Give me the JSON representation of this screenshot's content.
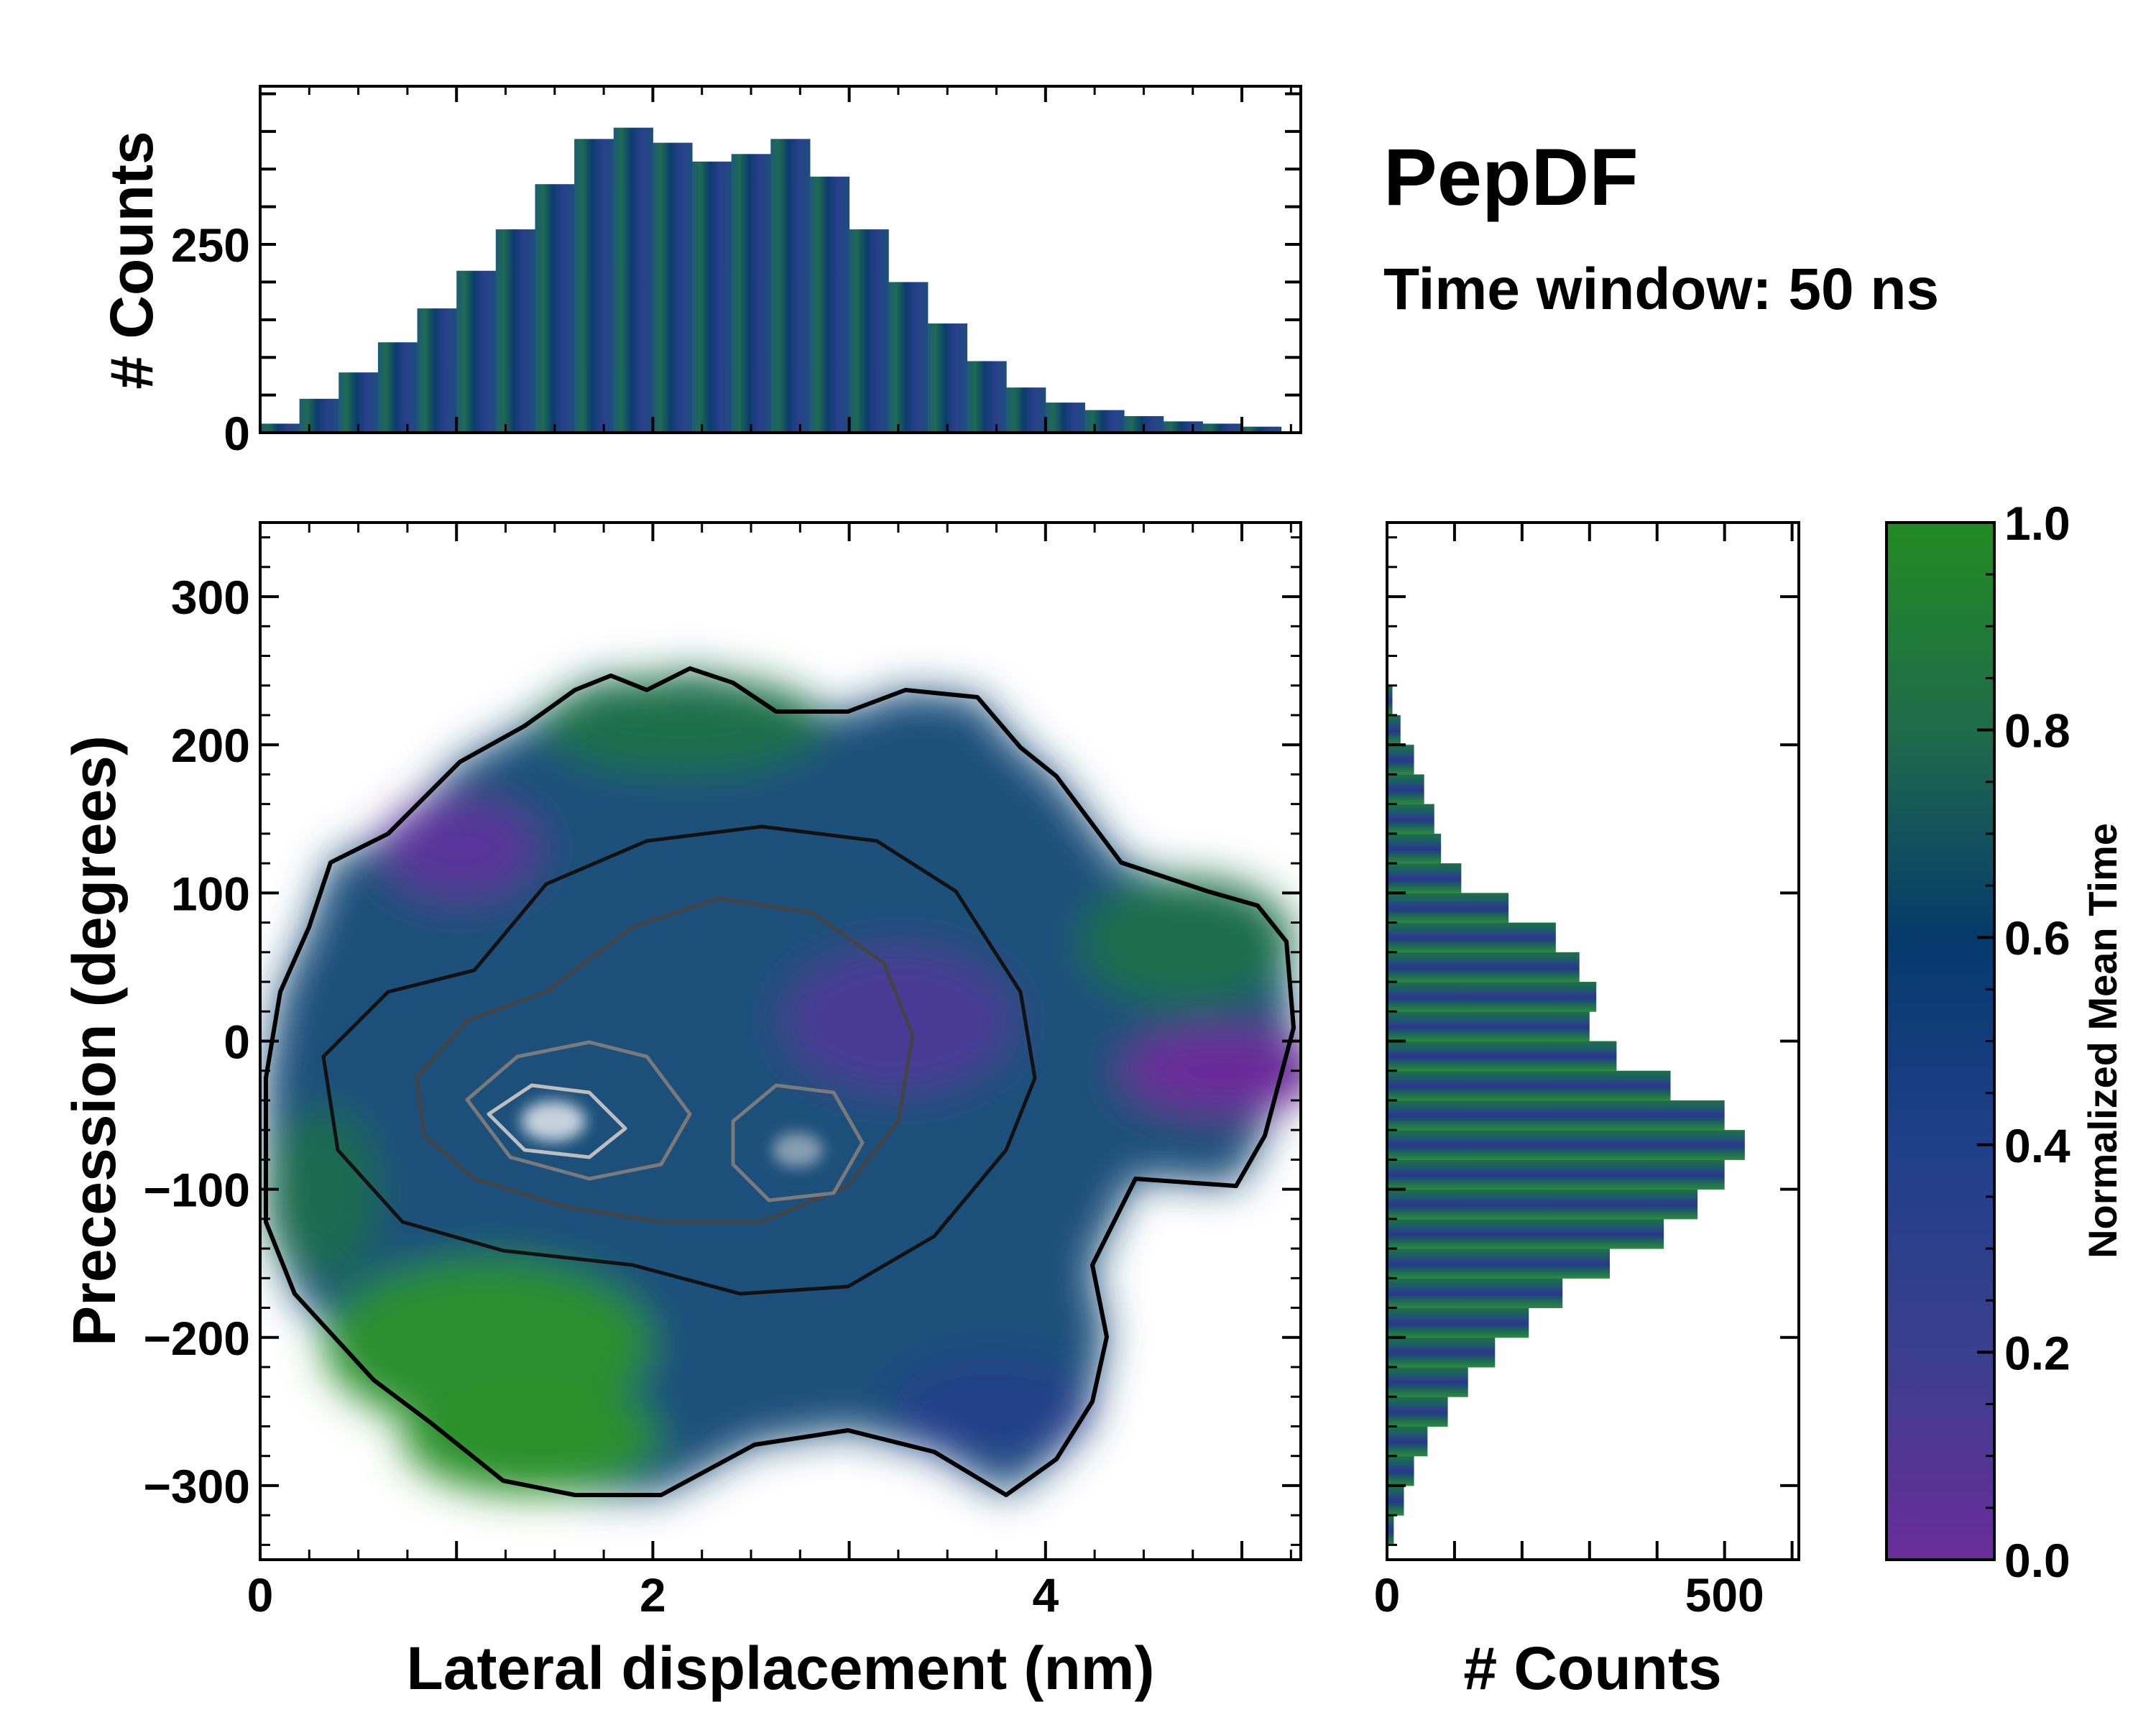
{
  "figure": {
    "title": "PepDF",
    "subtitle": "Time window: 50 ns"
  },
  "chart_data": [
    {
      "id": "joint",
      "type": "heatmap",
      "title": "",
      "xlabel": "Lateral displacement (nm)",
      "ylabel": "Precession (degrees)",
      "xlim": [
        0,
        5.3
      ],
      "ylim": [
        -350,
        350
      ],
      "xticks": [
        0,
        2,
        4
      ],
      "yticks": [
        -300,
        -200,
        -100,
        0,
        100,
        200,
        300
      ],
      "ytick_labels": [
        "−300",
        "−200",
        "−100",
        "0",
        "100",
        "200",
        "300"
      ],
      "color_meaning": "Normalized Mean Time",
      "contours": "density contours (black outer, grey inner) overlaid",
      "density_modes": [
        {
          "x": 1.5,
          "y": -60,
          "level": "high"
        },
        {
          "x": 2.7,
          "y": -80,
          "level": "high"
        }
      ],
      "regions": [
        {
          "x": 1.2,
          "y": -280,
          "mean_time": 0.95
        },
        {
          "x": 1.5,
          "y": -200,
          "mean_time": 0.95
        },
        {
          "x": 0.9,
          "y": 130,
          "mean_time": 0.15
        },
        {
          "x": 4.7,
          "y": -20,
          "mean_time": 0.15
        },
        {
          "x": 2.5,
          "y": 200,
          "mean_time": 0.7
        },
        {
          "x": 4.6,
          "y": 70,
          "mean_time": 0.7
        },
        {
          "x": 4.0,
          "y": -280,
          "mean_time": 0.35
        },
        {
          "x": 2.2,
          "y": -30,
          "mean_time": 0.4
        }
      ]
    },
    {
      "id": "top-marginal",
      "type": "bar",
      "xlabel": "",
      "ylabel": "# Counts",
      "xlim": [
        0,
        5.3
      ],
      "ylim": [
        0,
        460
      ],
      "yticks": [
        0,
        250
      ],
      "x": [
        0.1,
        0.3,
        0.5,
        0.7,
        0.9,
        1.1,
        1.3,
        1.5,
        1.7,
        1.9,
        2.1,
        2.3,
        2.5,
        2.7,
        2.9,
        3.1,
        3.3,
        3.5,
        3.7,
        3.9,
        4.1,
        4.3,
        4.5,
        4.7,
        4.9,
        5.1
      ],
      "values": [
        12,
        45,
        80,
        120,
        165,
        215,
        270,
        330,
        390,
        405,
        385,
        360,
        370,
        390,
        340,
        270,
        200,
        145,
        95,
        60,
        40,
        30,
        22,
        15,
        12,
        8
      ]
    },
    {
      "id": "right-marginal",
      "type": "bar",
      "orientation": "horizontal",
      "xlabel": "# Counts",
      "ylabel": "",
      "xlim": [
        0,
        610
      ],
      "ylim": [
        -350,
        350
      ],
      "xticks": [
        0,
        500
      ],
      "y": [
        -330,
        -310,
        -290,
        -270,
        -250,
        -230,
        -210,
        -190,
        -170,
        -150,
        -130,
        -110,
        -90,
        -70,
        -50,
        -30,
        -10,
        10,
        30,
        50,
        70,
        90,
        110,
        130,
        150,
        170,
        190,
        210,
        230
      ],
      "values": [
        10,
        25,
        40,
        60,
        90,
        120,
        160,
        210,
        260,
        330,
        410,
        460,
        500,
        530,
        500,
        420,
        340,
        300,
        310,
        285,
        250,
        180,
        110,
        80,
        70,
        55,
        40,
        20,
        8
      ]
    },
    {
      "id": "colorbar",
      "type": "colorbar",
      "label": "Normalized Mean Time",
      "ticks": [
        0.0,
        0.2,
        0.4,
        0.6,
        0.8,
        1.0
      ],
      "tick_labels": [
        "0.0",
        "0.2",
        "0.4",
        "0.6",
        "0.8",
        "1.0"
      ],
      "colors": [
        "#6a2c9a",
        "#3a3f8e",
        "#1f3f8a",
        "#053a6b",
        "#1f6b4a",
        "#228b22"
      ]
    }
  ]
}
